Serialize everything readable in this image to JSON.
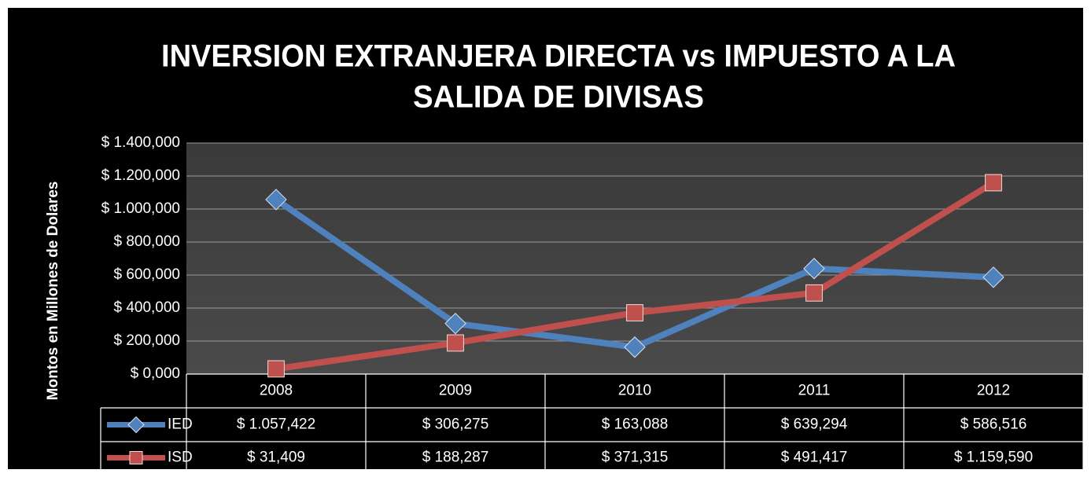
{
  "chart_data": {
    "type": "line",
    "title": [
      "INVERSION EXTRANJERA DIRECTA vs IMPUESTO A LA",
      "SALIDA DE DIVISAS"
    ],
    "y_label": "Montos en Millones de Dolares",
    "categories": [
      "2008",
      "2009",
      "2010",
      "2011",
      "2012"
    ],
    "series": [
      {
        "name": "IED",
        "color": "#4f81bd",
        "marker": "diamond",
        "values": [
          1057.422,
          306.275,
          163.088,
          639.294,
          586.516
        ],
        "value_labels": [
          "$ 1.057,422",
          "$ 306,275",
          "$ 163,088",
          "$ 639,294",
          "$ 586,516"
        ]
      },
      {
        "name": "ISD",
        "color": "#c0504d",
        "marker": "square",
        "values": [
          31.409,
          188.287,
          371.315,
          491.417,
          1159.59
        ],
        "value_labels": [
          "$ 31,409",
          "$ 188,287",
          "$ 371,315",
          "$ 491,417",
          "$ 1.159,590"
        ]
      }
    ],
    "ylim": [
      0,
      1400
    ],
    "yticks": [
      {
        "value": 0,
        "label": "$ 0,000"
      },
      {
        "value": 200,
        "label": "$ 200,000"
      },
      {
        "value": 400,
        "label": "$ 400,000"
      },
      {
        "value": 600,
        "label": "$ 600,000"
      },
      {
        "value": 800,
        "label": "$ 800,000"
      },
      {
        "value": 1000,
        "label": "$ 1.000,000"
      },
      {
        "value": 1200,
        "label": "$ 1.200,000"
      },
      {
        "value": 1400,
        "label": "$ 1.400,000"
      }
    ],
    "grid": true,
    "data_table": true
  }
}
